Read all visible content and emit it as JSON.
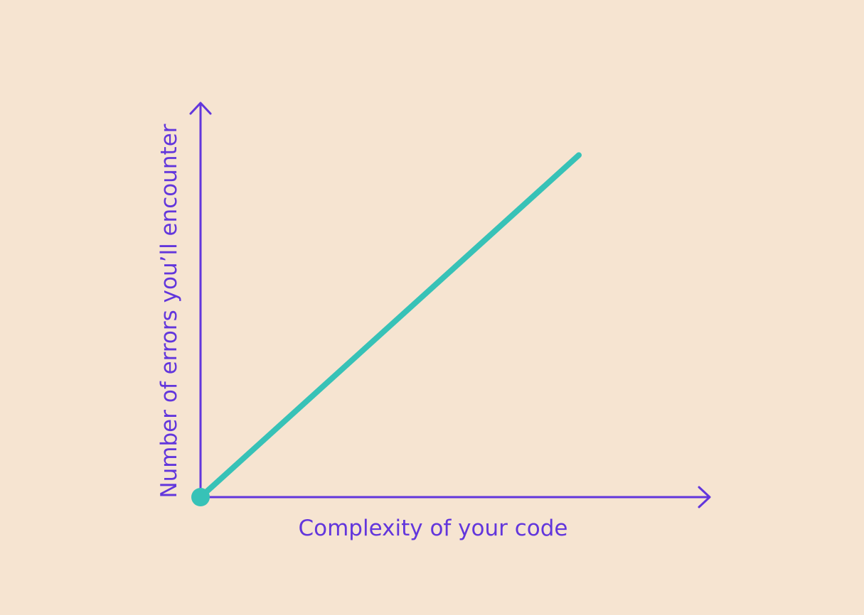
{
  "colors": {
    "background": "#f6e4d1",
    "axis": "#6236dc",
    "series": "#37c2b7"
  },
  "chart_data": {
    "type": "line",
    "title": "",
    "xlabel": "Complexity of your code",
    "ylabel": "Number of errors you’ll encounter",
    "xlim": [
      0,
      1
    ],
    "ylim": [
      0,
      1
    ],
    "grid": false,
    "legend": "none",
    "tick_labels": false,
    "series": [
      {
        "x": [
          0,
          0.8
        ],
        "y": [
          0,
          0.86
        ]
      }
    ]
  }
}
